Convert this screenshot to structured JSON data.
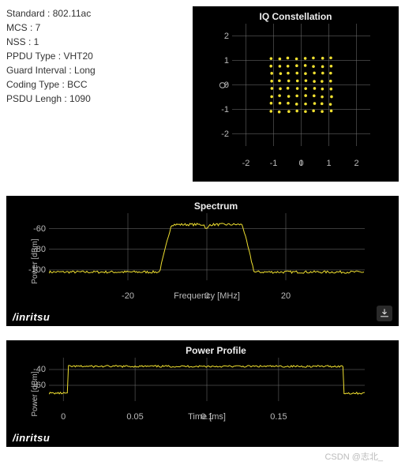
{
  "params": [
    {
      "label": "Standard",
      "value": "802.11ac"
    },
    {
      "label": "MCS",
      "value": "7"
    },
    {
      "label": "NSS",
      "value": "1"
    },
    {
      "label": "PPDU Type",
      "value": "VHT20"
    },
    {
      "label": "Guard Interval",
      "value": "Long"
    },
    {
      "label": "Coding Type",
      "value": "BCC"
    },
    {
      "label": "PSDU Lengh",
      "value": "1090"
    }
  ],
  "iq": {
    "title": "IQ Constellation",
    "xlabel": "I",
    "ylabel": "Q",
    "xlim": [
      -2.5,
      2.5
    ],
    "ylim": [
      -2.5,
      2.5
    ],
    "xticks": [
      -2,
      -1,
      0,
      1,
      2
    ],
    "yticks": [
      -2,
      -1,
      0,
      1,
      2
    ],
    "title_fontsize": 12,
    "tick_fontsize": 11,
    "grid_color": "#777777",
    "point_color": "#f0e030",
    "point_radius": 1.8,
    "background": "#000000",
    "qam_levels": [
      -1.08,
      -0.771,
      -0.463,
      -0.154,
      0.154,
      0.463,
      0.771,
      1.08
    ],
    "jitter": 0.05
  },
  "spectrum": {
    "title": "Spectrum",
    "xlabel": "Frequency [MHz]",
    "ylabel": "Power [dBm]",
    "xlim": [
      -40,
      40
    ],
    "ylim": [
      -110,
      -45
    ],
    "xticks": [
      -20,
      0,
      20
    ],
    "yticks": [
      -100,
      -80,
      -60
    ],
    "grid_color": "#777777",
    "trace_color": "#f0e030",
    "background": "#000000",
    "noise_floor": -102,
    "plateau_level": -56,
    "plateau_start": -9,
    "plateau_end": 9,
    "transition_width": 3,
    "notch_freq": 0,
    "notch_depth": 5,
    "noise_amp": 1.2,
    "brand": "/inritsu"
  },
  "power": {
    "title": "Power Profile",
    "xlabel": "Time [ms]",
    "ylabel": "Power [dBm]",
    "xlim": [
      -0.01,
      0.21
    ],
    "ylim": [
      -80,
      -25
    ],
    "xticks": [
      0,
      0.05,
      0.1,
      0.15
    ],
    "yticks": [
      -60,
      -40
    ],
    "grid_color": "#777777",
    "trace_color": "#f0e030",
    "background": "#000000",
    "off_level": -70,
    "on_level": -36,
    "burst_start": 0.003,
    "burst_end": 0.195,
    "noise_amp": 1.2,
    "brand": "/inritsu"
  },
  "watermark": "CSDN @志北_"
}
